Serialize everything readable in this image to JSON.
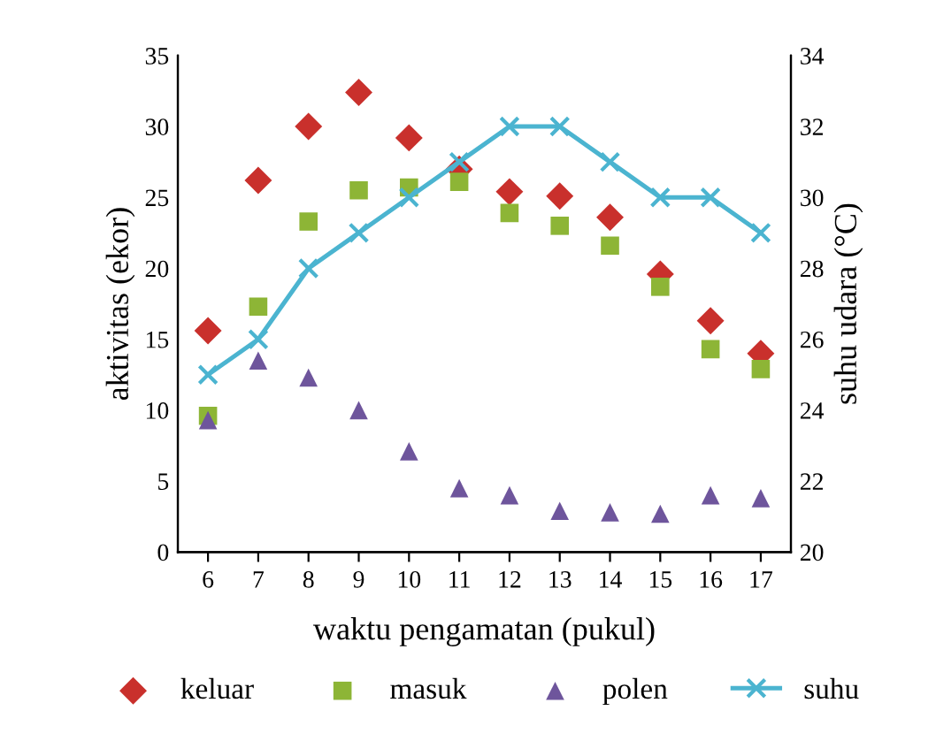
{
  "chart_data": {
    "type": "scatter",
    "xlabel": "waktu pengamatan (pukul)",
    "ylabel": "aktivitas (ekor)",
    "y2label": "suhu udara (°C)",
    "categories": [
      "6",
      "7",
      "8",
      "9",
      "10",
      "11",
      "12",
      "13",
      "14",
      "15",
      "16",
      "17"
    ],
    "ylim": [
      0,
      35
    ],
    "yticks": [
      0,
      5,
      10,
      15,
      20,
      25,
      30,
      35
    ],
    "y2lim": [
      20,
      34
    ],
    "y2ticks": [
      20,
      22,
      24,
      26,
      28,
      30,
      32,
      34
    ],
    "grid": false,
    "legend": "bottom",
    "series": [
      {
        "name": "keluar",
        "marker": "diamond",
        "color": "#c9302c",
        "values": [
          15.6,
          26.2,
          30.0,
          32.4,
          29.2,
          27.0,
          25.4,
          25.1,
          23.6,
          19.6,
          16.3,
          14.0
        ]
      },
      {
        "name": "masuk",
        "marker": "square",
        "color": "#8db536",
        "values": [
          9.6,
          17.3,
          23.3,
          25.5,
          25.7,
          26.1,
          23.9,
          23.0,
          21.6,
          18.7,
          14.3,
          12.9
        ]
      },
      {
        "name": "polen",
        "marker": "triangle",
        "color": "#6e559c",
        "values": [
          9.3,
          13.5,
          12.3,
          10.0,
          7.1,
          4.5,
          4.0,
          2.9,
          2.8,
          2.7,
          4.0,
          3.8
        ]
      },
      {
        "name": "suhu",
        "type": "line",
        "axis": "y2",
        "marker": "cross",
        "line_style": "solid",
        "color": "#4bb4d0",
        "values": [
          25,
          26,
          28,
          29,
          30,
          31,
          32,
          32,
          31,
          30,
          30,
          29
        ]
      }
    ]
  }
}
